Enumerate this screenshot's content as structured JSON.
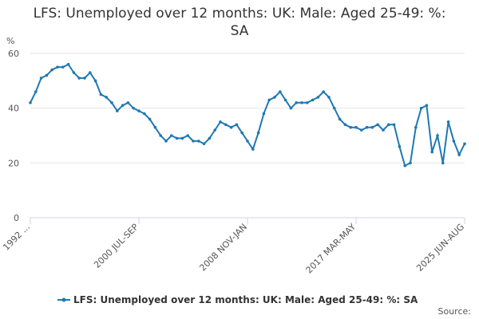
{
  "chart_data": {
    "type": "line",
    "title": "LFS: Unemployed over 12 months: UK: Male: Aged 25-49: %: SA",
    "y_label": "%",
    "source": "Source:",
    "categories": [
      "1992 ...",
      null,
      null,
      null,
      null,
      null,
      null,
      null,
      null,
      null,
      null,
      null,
      null,
      null,
      null,
      null,
      null,
      null,
      null,
      null,
      "2000 JUL-SEP",
      null,
      null,
      null,
      null,
      null,
      null,
      null,
      null,
      null,
      null,
      null,
      null,
      null,
      null,
      null,
      null,
      null,
      null,
      null,
      "2008 NOV-JAN",
      null,
      null,
      null,
      null,
      null,
      null,
      null,
      null,
      null,
      null,
      null,
      null,
      null,
      null,
      null,
      null,
      null,
      null,
      null,
      "2017 MAR-MAY",
      null,
      null,
      null,
      null,
      null,
      null,
      null,
      null,
      null,
      null,
      null,
      null,
      null,
      null,
      null,
      null,
      null,
      null,
      null,
      "2025 JUN-AUG"
    ],
    "series": [
      {
        "name": "LFS: Unemployed over 12 months: UK: Male: Aged 25-49: %: SA",
        "color": "#1f78b4",
        "values": [
          42,
          46,
          51,
          52,
          54,
          55,
          55,
          56,
          53,
          51,
          51,
          53,
          50,
          45,
          44,
          42,
          39,
          41,
          42,
          40,
          39,
          38,
          36,
          33,
          30,
          28,
          30,
          29,
          29,
          30,
          28,
          28,
          27,
          29,
          32,
          35,
          34,
          33,
          34,
          31,
          28,
          25,
          31,
          38,
          43,
          44,
          46,
          43,
          40,
          42,
          42,
          42,
          43,
          44,
          46,
          44,
          40,
          36,
          34,
          33,
          33,
          32,
          33,
          33,
          34,
          32,
          34,
          34,
          26,
          19,
          20,
          33,
          40,
          41,
          24,
          30,
          20,
          35,
          28,
          23,
          27
        ]
      }
    ],
    "ylim": [
      0,
      60
    ],
    "yticks": [
      0,
      20,
      40,
      60
    ],
    "grid": true,
    "legend": "bottom"
  }
}
